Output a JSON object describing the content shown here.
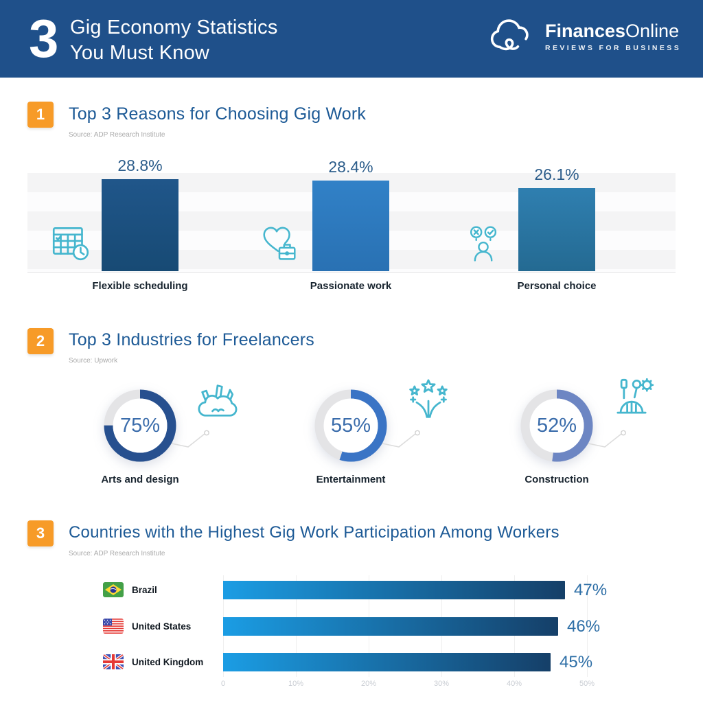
{
  "colors": {
    "header_bg": "#1f508a",
    "accent_orange": "#f79b28",
    "section_title": "#1d5a96",
    "icon_teal": "#45b6ce"
  },
  "header": {
    "count": "3",
    "title_line1": "Gig Economy Statistics",
    "title_line2": "You Must Know",
    "brand_bold": "Finances",
    "brand_light": "Online",
    "brand_tagline": "REVIEWS FOR BUSINESS"
  },
  "sections": [
    {
      "badge": "1",
      "title": "Top 3 Reasons for Choosing Gig Work",
      "source": "Source: ADP Research Institute",
      "items": [
        {
          "label": "Flexible scheduling",
          "display": "28.8%",
          "value": 28.8,
          "color_top": "#20568a",
          "color_bottom": "#174a74",
          "icon": "calendar-clock-icon"
        },
        {
          "label": "Passionate work",
          "display": "28.4%",
          "value": 28.4,
          "color_top": "#3181c7",
          "color_bottom": "#2971b3",
          "icon": "heart-briefcase-icon"
        },
        {
          "label": "Personal choice",
          "display": "26.1%",
          "value": 26.1,
          "color_top": "#2f7fb0",
          "color_bottom": "#246a92",
          "icon": "person-choice-icon"
        }
      ]
    },
    {
      "badge": "2",
      "title": "Top 3 Industries for Freelancers",
      "source": "Source: Upwork",
      "items": [
        {
          "label": "Arts and design",
          "display": "75%",
          "value": 75,
          "color": "#27508f",
          "icon": "arts-design-icon"
        },
        {
          "label": "Entertainment",
          "display": "55%",
          "value": 55,
          "color": "#3a74c5",
          "icon": "fireworks-icon"
        },
        {
          "label": "Construction",
          "display": "52%",
          "value": 52,
          "color": "#6d86c3",
          "icon": "construction-icon"
        }
      ]
    },
    {
      "badge": "3",
      "title": "Countries with the Highest Gig Work Participation Among Workers",
      "source": "Source: ADP Research Institute",
      "axis_max": 50,
      "axis_ticks": [
        "0",
        "10%",
        "20%",
        "30%",
        "40%",
        "50%"
      ],
      "bar_gradient": [
        "#1b9de4",
        "#153f68"
      ],
      "items": [
        {
          "label": "Brazil",
          "display": "47%",
          "value": 47,
          "flag": "brazil-flag-icon"
        },
        {
          "label": "United States",
          "display": "46%",
          "value": 46,
          "flag": "us-flag-icon"
        },
        {
          "label": "United Kingdom",
          "display": "45%",
          "value": 45,
          "flag": "uk-flag-icon"
        }
      ]
    }
  ],
  "chart_data": [
    {
      "type": "bar",
      "title": "Top 3 Reasons for Choosing Gig Work",
      "source": "ADP Research Institute",
      "categories": [
        "Flexible scheduling",
        "Passionate work",
        "Personal choice"
      ],
      "values": [
        28.8,
        28.4,
        26.1
      ],
      "data_labels": [
        "28.8%",
        "28.4%",
        "26.1%"
      ],
      "unit": "%",
      "ylim": [
        0,
        30
      ],
      "grid": "horizontal-bands",
      "legend": "none"
    },
    {
      "type": "pie",
      "subtype": "donut",
      "title": "Top 3 Industries for Freelancers",
      "source": "Upwork",
      "categories": [
        "Arts and design",
        "Entertainment",
        "Construction"
      ],
      "values": [
        75,
        55,
        52
      ],
      "data_labels": [
        "75%",
        "55%",
        "52%"
      ],
      "unit": "%",
      "legend": "labels-below"
    },
    {
      "type": "bar",
      "subtype": "horizontal",
      "title": "Countries with the Highest Gig Work Participation Among Workers",
      "source": "ADP Research Institute",
      "categories": [
        "Brazil",
        "United States",
        "United Kingdom"
      ],
      "values": [
        47,
        46,
        45
      ],
      "data_labels": [
        "47%",
        "46%",
        "45%"
      ],
      "unit": "%",
      "xlim": [
        0,
        50
      ],
      "x_ticks": [
        "0",
        "10%",
        "20%",
        "30%",
        "40%",
        "50%"
      ],
      "grid": "vertical",
      "legend": "none"
    }
  ]
}
